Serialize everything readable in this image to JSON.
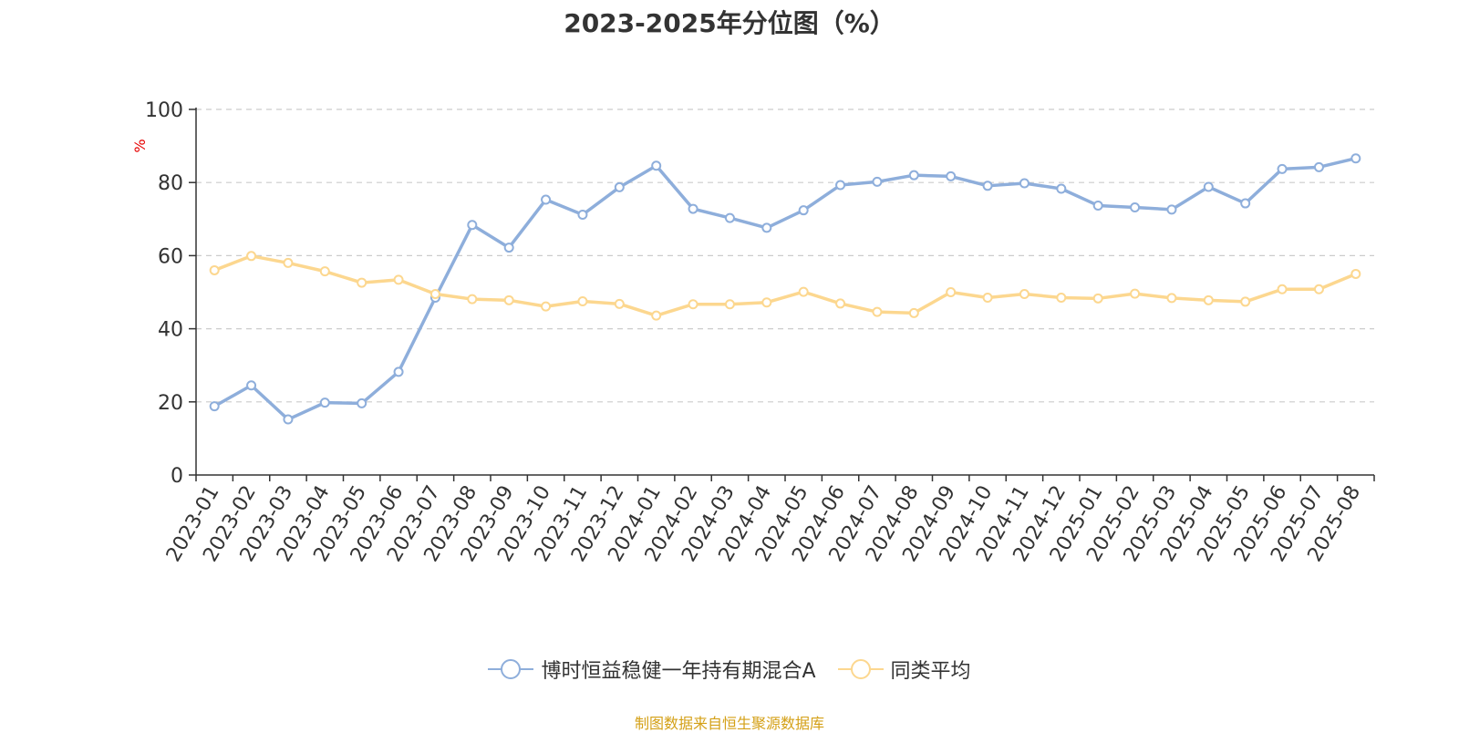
{
  "chart_data": {
    "type": "line",
    "title": "2023-2025年分位图（%）",
    "ylabel": "%",
    "ylim": [
      0,
      100
    ],
    "yticks": [
      0,
      20,
      40,
      60,
      80,
      100
    ],
    "grid": true,
    "legend_position": "bottom-center",
    "categories": [
      "2023-01",
      "2023-02",
      "2023-03",
      "2023-04",
      "2023-05",
      "2023-06",
      "2023-07",
      "2023-08",
      "2023-09",
      "2023-10",
      "2023-11",
      "2023-12",
      "2024-01",
      "2024-02",
      "2024-03",
      "2024-04",
      "2024-05",
      "2024-06",
      "2024-07",
      "2024-08",
      "2024-09",
      "2024-10",
      "2024-11",
      "2024-12",
      "2025-01",
      "2025-02",
      "2025-03",
      "2025-04",
      "2025-05",
      "2025-06",
      "2025-07",
      "2025-08"
    ],
    "series": [
      {
        "name": "博时恒益稳健一年持有期混合A",
        "color": "#8eaedb",
        "values": [
          18.8,
          24.5,
          15.2,
          19.8,
          19.6,
          28.2,
          48.5,
          68.4,
          62.2,
          75.3,
          71.2,
          78.7,
          84.6,
          72.8,
          70.3,
          67.6,
          72.4,
          79.3,
          80.2,
          82.0,
          81.7,
          79.1,
          79.8,
          78.3,
          73.7,
          73.2,
          72.6,
          78.8,
          74.3,
          83.7,
          84.2,
          86.6
        ]
      },
      {
        "name": "同类平均",
        "color": "#fcd78f",
        "values": [
          56.0,
          59.9,
          58.0,
          55.7,
          52.6,
          53.4,
          49.5,
          48.1,
          47.8,
          46.1,
          47.5,
          46.8,
          43.6,
          46.7,
          46.7,
          47.2,
          50.1,
          46.9,
          44.6,
          44.3,
          50.0,
          48.5,
          49.5,
          48.5,
          48.3,
          49.6,
          48.4,
          47.8,
          47.4,
          50.8,
          50.8,
          55.0
        ]
      }
    ]
  },
  "source_note": "制图数据来自恒生聚源数据库",
  "colors": {
    "axis": "#333333",
    "grid": "#cccccc",
    "ylabel": "#e60000",
    "source": "#d4a017"
  }
}
